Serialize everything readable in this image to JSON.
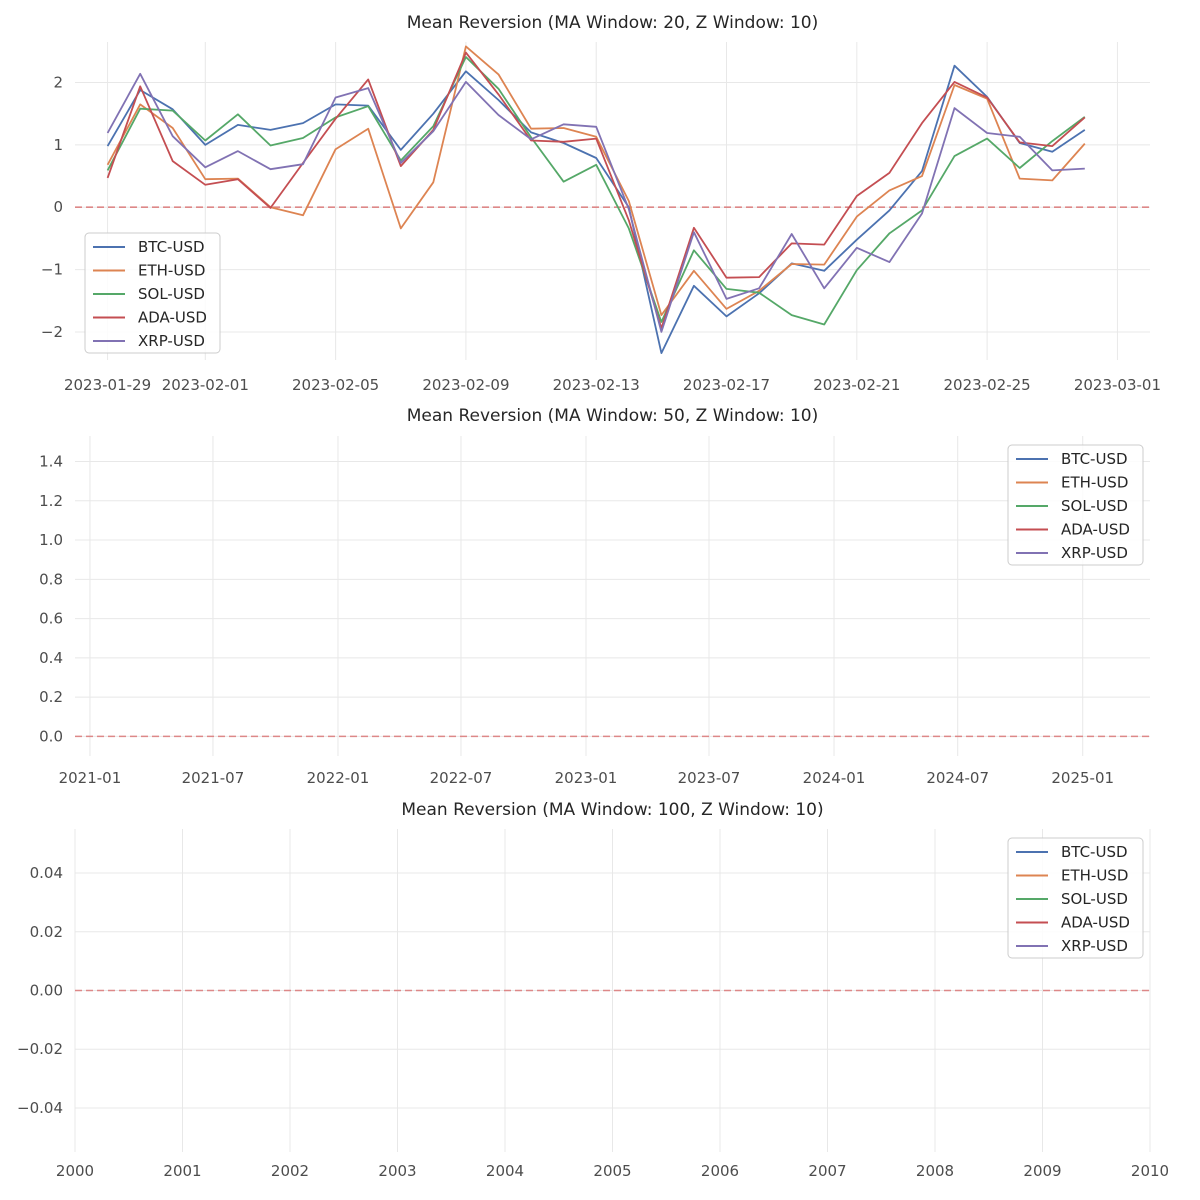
{
  "colors": {
    "BTC-USD": "#4c72b0",
    "ETH-USD": "#dd8452",
    "SOL-USD": "#55a868",
    "ADA-USD": "#c44e52",
    "XRP-USD": "#8172b3",
    "zero_line": "#dd8888",
    "grid": "#e8e8e8"
  },
  "chart_data": [
    {
      "type": "line",
      "title": "Mean Reversion (MA Window: 20, Z Window: 10)",
      "xlabel": "",
      "ylabel": "",
      "x_axis": "date",
      "x_start": "2023-01-29",
      "x_end": "2023-02-28",
      "xlim": [
        "2023-01-28",
        "2023-03-02"
      ],
      "ylim": [
        -2.45,
        2.65
      ],
      "yticks": [
        -2,
        -1,
        0,
        1,
        2
      ],
      "ytick_labels": [
        "−2",
        "−1",
        "0",
        "1",
        "2"
      ],
      "xticks": [
        "2023-01-29",
        "2023-02-01",
        "2023-02-05",
        "2023-02-09",
        "2023-02-13",
        "2023-02-17",
        "2023-02-21",
        "2023-02-25",
        "2023-03-01"
      ],
      "grid": true,
      "legend": "lower-left",
      "reference_line": 0,
      "series": [
        {
          "name": "BTC-USD",
          "values": [
            0.98,
            1.88,
            1.57,
            1.0,
            1.32,
            1.24,
            1.35,
            1.65,
            1.63,
            0.92,
            1.5,
            2.18,
            1.72,
            1.2,
            1.03,
            0.79,
            0.0,
            -2.34,
            -1.26,
            -1.75,
            -1.38,
            -0.9,
            -1.02,
            -0.52,
            -0.05,
            0.58,
            2.27,
            1.77,
            1.03,
            0.89,
            1.24
          ]
        },
        {
          "name": "ETH-USD",
          "values": [
            0.68,
            1.65,
            1.27,
            0.45,
            0.46,
            0.0,
            -0.13,
            0.93,
            1.26,
            -0.34,
            0.4,
            2.58,
            2.13,
            1.26,
            1.27,
            1.13,
            0.1,
            -1.73,
            -1.02,
            -1.63,
            -1.34,
            -0.91,
            -0.92,
            -0.15,
            0.27,
            0.5,
            1.96,
            1.74,
            0.46,
            0.43,
            1.02
          ]
        },
        {
          "name": "SOL-USD",
          "values": [
            0.59,
            1.58,
            1.55,
            1.07,
            1.49,
            0.99,
            1.11,
            1.44,
            1.62,
            0.75,
            1.3,
            2.41,
            1.9,
            1.12,
            0.41,
            0.68,
            -0.34,
            -1.84,
            -0.69,
            -1.31,
            -1.37,
            -1.73,
            -1.88,
            -1.01,
            -0.42,
            -0.05,
            0.82,
            1.1,
            0.63,
            1.06,
            1.45
          ]
        },
        {
          "name": "ADA-USD",
          "values": [
            0.47,
            1.94,
            0.74,
            0.36,
            0.45,
            -0.01,
            0.71,
            1.42,
            2.05,
            0.66,
            1.24,
            2.48,
            1.81,
            1.07,
            1.05,
            1.1,
            -0.21,
            -1.94,
            -0.33,
            -1.13,
            -1.12,
            -0.58,
            -0.6,
            0.18,
            0.55,
            1.35,
            2.01,
            1.76,
            1.04,
            0.98,
            1.44
          ]
        },
        {
          "name": "XRP-USD",
          "values": [
            1.19,
            2.14,
            1.14,
            0.64,
            0.9,
            0.61,
            0.69,
            1.76,
            1.91,
            0.71,
            1.22,
            2.01,
            1.48,
            1.09,
            1.33,
            1.29,
            -0.03,
            -2.0,
            -0.4,
            -1.47,
            -1.3,
            -0.43,
            -1.3,
            -0.65,
            -0.88,
            -0.1,
            1.59,
            1.19,
            1.13,
            0.59,
            0.62
          ]
        }
      ]
    },
    {
      "type": "line",
      "title": "Mean Reversion (MA Window: 50, Z Window: 10)",
      "xlabel": "",
      "ylabel": "",
      "x_axis": "date",
      "xlim": [
        "2020-12-10",
        "2025-04-10"
      ],
      "ylim": [
        -0.1,
        1.53
      ],
      "yticks": [
        0.0,
        0.2,
        0.4,
        0.6,
        0.8,
        1.0,
        1.2,
        1.4
      ],
      "ytick_labels": [
        "0.0",
        "0.2",
        "0.4",
        "0.6",
        "0.8",
        "1.0",
        "1.2",
        "1.4"
      ],
      "xticks": [
        "2021-01",
        "2021-07",
        "2022-01",
        "2022-07",
        "2023-01",
        "2023-07",
        "2024-01",
        "2024-07",
        "2025-01"
      ],
      "grid": true,
      "legend": "top-right",
      "reference_line": 0,
      "series": [
        {
          "name": "BTC-USD",
          "values": []
        },
        {
          "name": "ETH-USD",
          "values": []
        },
        {
          "name": "SOL-USD",
          "values": []
        },
        {
          "name": "ADA-USD",
          "values": []
        },
        {
          "name": "XRP-USD",
          "values": []
        }
      ]
    },
    {
      "type": "line",
      "title": "Mean Reversion (MA Window: 100, Z Window: 10)",
      "xlabel": "",
      "ylabel": "",
      "x_axis": "year",
      "xlim": [
        2000,
        2010
      ],
      "ylim": [
        -0.055,
        0.055
      ],
      "yticks": [
        -0.04,
        -0.02,
        0.0,
        0.02,
        0.04
      ],
      "ytick_labels": [
        "−0.04",
        "−0.02",
        "0.00",
        "0.02",
        "0.04"
      ],
      "xticks": [
        "2000",
        "2001",
        "2002",
        "2003",
        "2004",
        "2005",
        "2006",
        "2007",
        "2008",
        "2009",
        "2010"
      ],
      "grid": true,
      "legend": "top-right",
      "reference_line": 0,
      "series": [
        {
          "name": "BTC-USD",
          "values": []
        },
        {
          "name": "ETH-USD",
          "values": []
        },
        {
          "name": "SOL-USD",
          "values": []
        },
        {
          "name": "ADA-USD",
          "values": []
        },
        {
          "name": "XRP-USD",
          "values": []
        }
      ]
    }
  ]
}
